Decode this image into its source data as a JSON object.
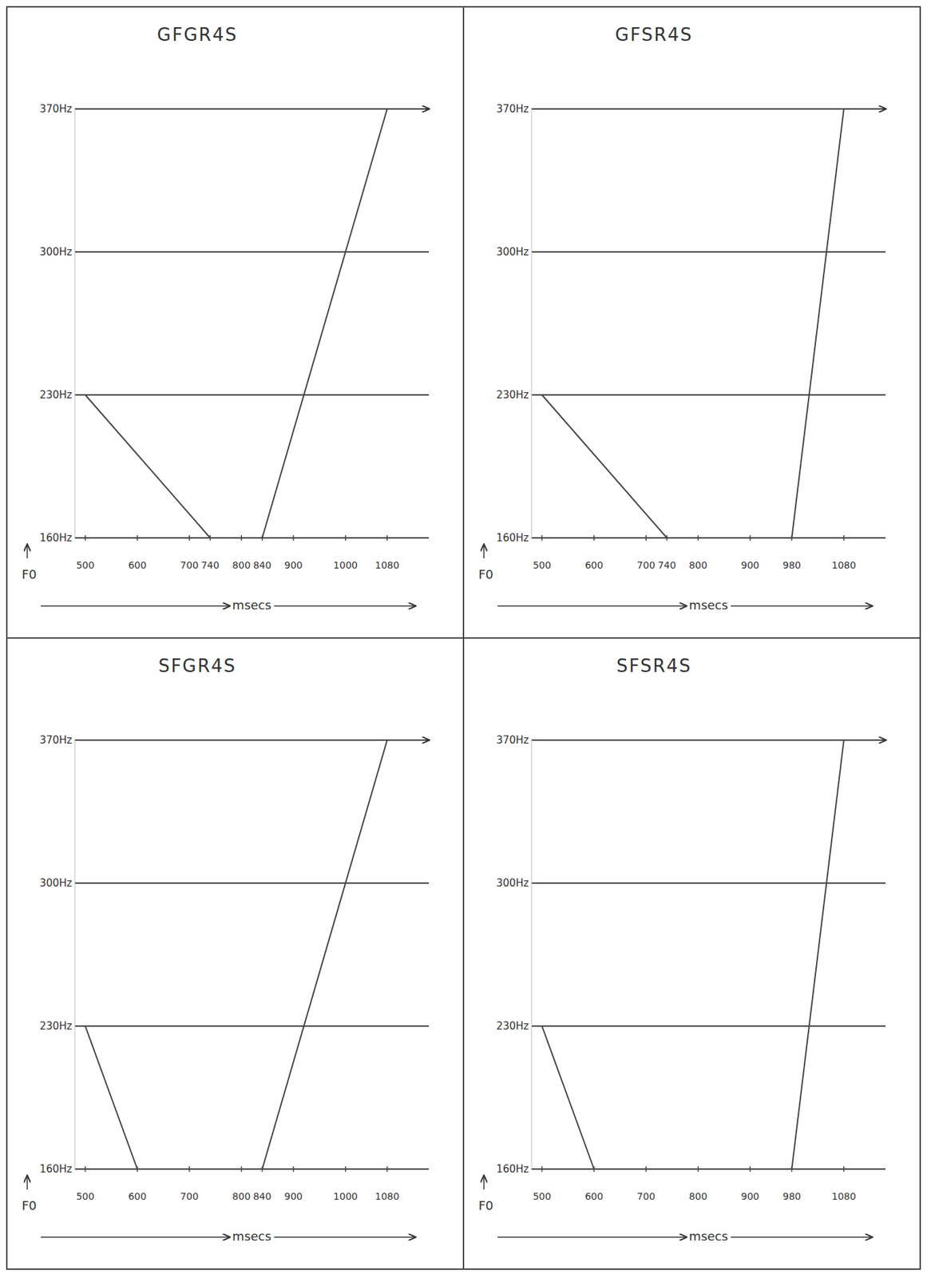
{
  "chart_data": [
    {
      "type": "line",
      "title": "GFGR4S",
      "xlabel": "msecs",
      "ylabel": "F0",
      "xlim": [
        480,
        1160
      ],
      "ylim": [
        160,
        370
      ],
      "grid": true,
      "xticks": [
        500,
        600,
        700,
        740,
        800,
        840,
        900,
        1000,
        1080
      ],
      "yticks": [
        {
          "value": 160,
          "label": "160Hz"
        },
        {
          "value": 230,
          "label": "230Hz"
        },
        {
          "value": 300,
          "label": "300Hz"
        },
        {
          "value": 370,
          "label": "370Hz"
        }
      ],
      "series": [
        {
          "color": "#444444",
          "x": [
            500,
            740
          ],
          "values": [
            230,
            160
          ]
        },
        {
          "color": "#444444",
          "x": [
            840,
            1080
          ],
          "values": [
            160,
            370
          ]
        }
      ]
    },
    {
      "type": "line",
      "title": "GFSR4S",
      "xlabel": "msecs",
      "ylabel": "F0",
      "xlim": [
        480,
        1160
      ],
      "ylim": [
        160,
        370
      ],
      "grid": true,
      "xticks": [
        500,
        600,
        700,
        740,
        800,
        900,
        980,
        1080
      ],
      "yticks": [
        {
          "value": 160,
          "label": "160Hz"
        },
        {
          "value": 230,
          "label": "230Hz"
        },
        {
          "value": 300,
          "label": "300Hz"
        },
        {
          "value": 370,
          "label": "370Hz"
        }
      ],
      "series": [
        {
          "color": "#444444",
          "x": [
            500,
            740
          ],
          "values": [
            230,
            160
          ]
        },
        {
          "color": "#444444",
          "x": [
            980,
            1080
          ],
          "values": [
            160,
            370
          ]
        }
      ]
    },
    {
      "type": "line",
      "title": "SFGR4S",
      "xlabel": "msecs",
      "ylabel": "F0",
      "xlim": [
        480,
        1160
      ],
      "ylim": [
        160,
        370
      ],
      "grid": true,
      "xticks": [
        500,
        600,
        700,
        800,
        840,
        900,
        1000,
        1080
      ],
      "yticks": [
        {
          "value": 160,
          "label": "160Hz"
        },
        {
          "value": 230,
          "label": "230Hz"
        },
        {
          "value": 300,
          "label": "300Hz"
        },
        {
          "value": 370,
          "label": "370Hz"
        }
      ],
      "series": [
        {
          "color": "#444444",
          "x": [
            500,
            600
          ],
          "values": [
            230,
            160
          ]
        },
        {
          "color": "#444444",
          "x": [
            840,
            1080
          ],
          "values": [
            160,
            370
          ]
        }
      ]
    },
    {
      "type": "line",
      "title": "SFSR4S",
      "xlabel": "msecs",
      "ylabel": "F0",
      "xlim": [
        480,
        1160
      ],
      "ylim": [
        160,
        370
      ],
      "grid": true,
      "xticks": [
        500,
        600,
        700,
        800,
        900,
        980,
        1080
      ],
      "yticks": [
        {
          "value": 160,
          "label": "160Hz"
        },
        {
          "value": 230,
          "label": "230Hz"
        },
        {
          "value": 300,
          "label": "300Hz"
        },
        {
          "value": 370,
          "label": "370Hz"
        }
      ],
      "series": [
        {
          "color": "#444444",
          "x": [
            500,
            600
          ],
          "values": [
            230,
            160
          ]
        },
        {
          "color": "#444444",
          "x": [
            980,
            1080
          ],
          "values": [
            160,
            370
          ]
        }
      ]
    }
  ]
}
